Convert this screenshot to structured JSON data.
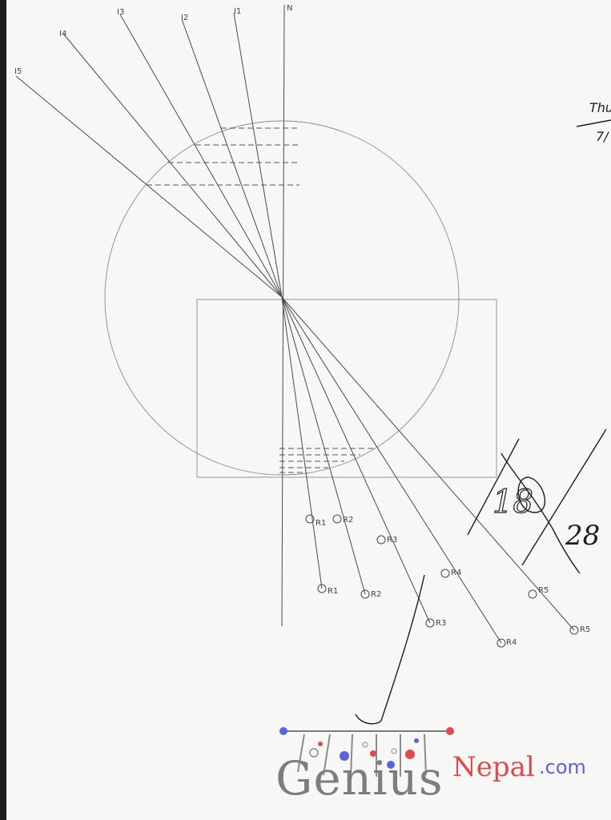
{
  "diagram": {
    "normal_label": "N",
    "incident_labels": [
      "I1",
      "I2",
      "I3",
      "I4",
      "I5"
    ],
    "reflected_labels_upper": [
      "R1",
      "R2",
      "R3",
      "R4",
      "R5"
    ],
    "reflected_labels_lower": [
      "R1",
      "R2",
      "R3",
      "R4",
      "R5"
    ]
  },
  "margin_notes": {
    "total": "28",
    "score": "18",
    "corner_top": "Thu",
    "corner_bottom": "7/"
  },
  "watermark": {
    "brand_main": "Genius",
    "brand_suffix": "Nepal",
    "brand_tld": ".com",
    "colors": {
      "blue": "#5b63e0",
      "red": "#e24a4a",
      "grey": "#7d7d7d"
    }
  }
}
